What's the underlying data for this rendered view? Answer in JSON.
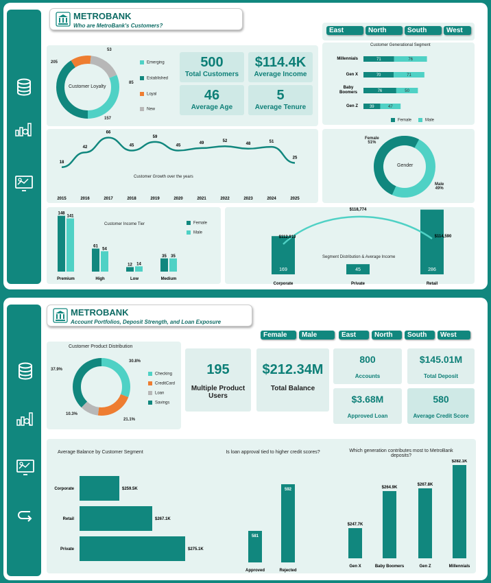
{
  "dash1": {
    "brand": "METROBANK",
    "subtitle": "Who are MetroBank's Customers?",
    "regions": [
      "East",
      "North",
      "South",
      "West"
    ],
    "loyalty": {
      "title": "Customer Loyalty",
      "legend": [
        "Emerging",
        "Established",
        "Loyal",
        "New"
      ],
      "values": {
        "emerging": 157,
        "established": 205,
        "loyal": 53,
        "new": 85
      },
      "labels": [
        "53",
        "85",
        "157",
        "205"
      ]
    },
    "kpis": {
      "total_customers": {
        "value": "500",
        "label": "Total Customers"
      },
      "avg_income": {
        "value": "$114.4K",
        "label": "Average Income"
      },
      "avg_age": {
        "value": "46",
        "label": "Average Age"
      },
      "avg_tenure": {
        "value": "5",
        "label": "Average Tenure"
      }
    },
    "gen_segment": {
      "title": "Customer Generational Segment",
      "rows": [
        {
          "name": "Millennials",
          "female": "71",
          "male": "76"
        },
        {
          "name": "Gen X",
          "female": "70",
          "male": "71"
        },
        {
          "name": "Baby Boomers",
          "female": "76",
          "male": "50"
        },
        {
          "name": "Gen Z",
          "female": "39",
          "male": "47"
        }
      ],
      "legend": [
        "Female",
        "Male"
      ]
    },
    "growth": {
      "title": "Customer Growth over the years",
      "years": [
        "2015",
        "2016",
        "2017",
        "2018",
        "2019",
        "2020",
        "2021",
        "2022",
        "2023",
        "2024",
        "2025"
      ],
      "values": [
        "18",
        "42",
        "66",
        "45",
        "59",
        "45",
        "49",
        "52",
        "48",
        "51",
        "25"
      ]
    },
    "gender": {
      "title": "Gender",
      "female": "Female",
      "female_pct": "51%",
      "male": "Male",
      "male_pct": "49%"
    },
    "income_tier": {
      "title": "Customer Income Tier",
      "legend": [
        "Female",
        "Male"
      ],
      "tiers": [
        {
          "name": "Premium",
          "female": "148",
          "male": "141"
        },
        {
          "name": "High",
          "female": "61",
          "male": "54"
        },
        {
          "name": "Low",
          "female": "12",
          "male": "14"
        },
        {
          "name": "Medium",
          "female": "35",
          "male": "35"
        }
      ]
    },
    "segment": {
      "title": "Segment Distribution & Average Income",
      "items": [
        {
          "name": "Corporate",
          "count": "169",
          "income": "$112,910"
        },
        {
          "name": "Private",
          "count": "45",
          "income": "$118,774"
        },
        {
          "name": "Retail",
          "count": "286",
          "income": "$114,590"
        }
      ]
    }
  },
  "dash2": {
    "brand": "METROBANK",
    "subtitle": "Account Portfolios, Deposit Strength, and Loan Exposure",
    "genders": [
      "Female",
      "Male"
    ],
    "regions": [
      "East",
      "North",
      "South",
      "West"
    ],
    "product": {
      "title": "Customer Product Distribution",
      "legend": [
        "Checking",
        "CreditCard",
        "Loan",
        "Savings"
      ],
      "labels": [
        "30.8%",
        "21.1%",
        "10.3%",
        "37.9%"
      ]
    },
    "kpis": {
      "multi_product": {
        "value": "195",
        "label": "Multiple Product Users"
      },
      "total_balance": {
        "value": "$212.34M",
        "label": "Total Balance"
      },
      "accounts": {
        "value": "800",
        "label": "Accounts"
      },
      "total_deposit": {
        "value": "$145.01M",
        "label": "Total Deposit"
      },
      "approved_loan": {
        "value": "$3.68M",
        "label": "Approved Loan"
      },
      "credit_score": {
        "value": "580",
        "label": "Average Credit Score"
      }
    },
    "avg_balance": {
      "title": "Average Balance by Customer Segment",
      "rows": [
        {
          "name": "Corporate",
          "value": "$259.5K"
        },
        {
          "name": "Retail",
          "value": "$267.1K"
        },
        {
          "name": "Private",
          "value": "$275.1K"
        }
      ]
    },
    "loan": {
      "title": "Is loan approval tied to higher credit scores?",
      "bars": [
        {
          "name": "Approved",
          "value": "581"
        },
        {
          "name": "Rejected",
          "value": "592"
        }
      ]
    },
    "deposit_gen": {
      "title": "Which generation contributes most to MetroBank deposits?",
      "bars": [
        {
          "name": "Gen X",
          "value": "$247.7K"
        },
        {
          "name": "Baby Boomers",
          "value": "$264.9K"
        },
        {
          "name": "Gen Z",
          "value": "$267.8K"
        },
        {
          "name": "Millennials",
          "value": "$282.1K"
        }
      ]
    }
  },
  "colors": {
    "teal": "#11877e",
    "light_teal": "#4fd1c5",
    "orange": "#ee7d31",
    "gray": "#b7b7b7",
    "card": "#e6f3f1"
  },
  "icons": [
    "database-icon",
    "analytics-chart-icon",
    "dashboard-monitor-icon",
    "back-arrow-icon"
  ]
}
